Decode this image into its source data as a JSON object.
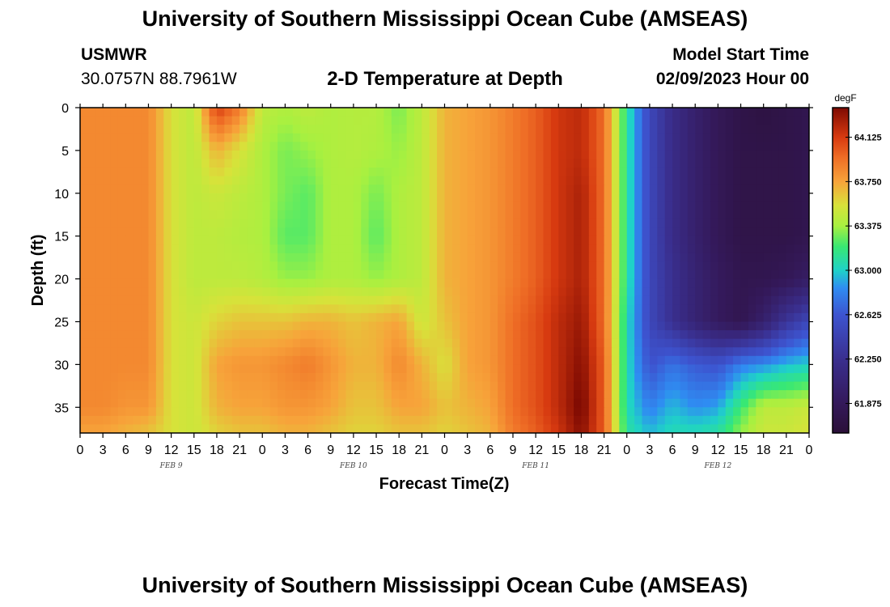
{
  "header": {
    "title": "University of Southern Mississippi Ocean Cube (AMSEAS)",
    "station_name": "USMWR",
    "station_coords": "30.0757N  88.7961W",
    "chart_title": "2-D Temperature at Depth",
    "model_label": "Model Start Time",
    "model_time": "02/09/2023 Hour 00"
  },
  "footer": {
    "title": "University of Southern Mississippi Ocean Cube (AMSEAS)"
  },
  "chart_data": {
    "type": "heatmap",
    "title": "2-D Temperature at Depth",
    "xlabel": "Forecast Time(Z)",
    "ylabel": "Depth (ft)",
    "x_unit": "forecast hour",
    "xlim": [
      0,
      96
    ],
    "ylim": [
      0,
      38
    ],
    "y_inverted": true,
    "x_ticks": [
      0,
      3,
      6,
      9,
      12,
      15,
      18,
      21,
      24,
      27,
      30,
      33,
      36,
      39,
      42,
      45,
      48,
      51,
      54,
      57,
      60,
      63,
      66,
      69,
      72,
      75,
      78,
      81,
      84,
      87,
      90,
      93,
      96
    ],
    "x_tick_labels": [
      "0",
      "3",
      "6",
      "9",
      "12",
      "15",
      "18",
      "21",
      "0",
      "3",
      "6",
      "9",
      "12",
      "15",
      "18",
      "21",
      "0",
      "3",
      "6",
      "9",
      "12",
      "15",
      "18",
      "21",
      "0",
      "3",
      "6",
      "9",
      "12",
      "15",
      "18",
      "21",
      "0"
    ],
    "day_labels": [
      {
        "hour": 12,
        "text": "FEB 9"
      },
      {
        "hour": 36,
        "text": "FEB 10"
      },
      {
        "hour": 60,
        "text": "FEB 11"
      },
      {
        "hour": 84,
        "text": "FEB 12"
      }
    ],
    "y_ticks": [
      0,
      5,
      10,
      15,
      20,
      25,
      30,
      35
    ],
    "y_tick_labels": [
      "0",
      "5",
      "10",
      "15",
      "20",
      "25",
      "30",
      "35"
    ],
    "colorbar": {
      "unit": "degF",
      "min": 61.625,
      "max": 64.375,
      "tick_values": [
        61.875,
        62.25,
        62.625,
        63.0,
        63.375,
        63.75,
        64.125
      ],
      "tick_labels": [
        "61.875",
        "62.250",
        "62.625",
        "63.000",
        "63.375",
        "63.750",
        "64.125"
      ],
      "colors": [
        {
          "v": 61.625,
          "c": "#2b1038"
        },
        {
          "v": 61.875,
          "c": "#34195a"
        },
        {
          "v": 62.25,
          "c": "#3a2f8f"
        },
        {
          "v": 62.625,
          "c": "#3d54d0"
        },
        {
          "v": 62.85,
          "c": "#2f8cf2"
        },
        {
          "v": 63.0,
          "c": "#1fd2c8"
        },
        {
          "v": 63.2,
          "c": "#38e873"
        },
        {
          "v": 63.375,
          "c": "#a8f040"
        },
        {
          "v": 63.55,
          "c": "#d8e23a"
        },
        {
          "v": 63.75,
          "c": "#f7a33a"
        },
        {
          "v": 63.95,
          "c": "#ef6e26"
        },
        {
          "v": 64.125,
          "c": "#d73a10"
        },
        {
          "v": 64.375,
          "c": "#7e0a02"
        }
      ]
    },
    "temperature_field": {
      "depths_ft": [
        0,
        5,
        10,
        15,
        20,
        25,
        30,
        35,
        38
      ],
      "hours": [
        0,
        3,
        6,
        9,
        12,
        15,
        18,
        21,
        24,
        27,
        30,
        33,
        36,
        39,
        42,
        45,
        48,
        51,
        54,
        57,
        60,
        63,
        66,
        69,
        72,
        75,
        78,
        81,
        84,
        87,
        90,
        93,
        96
      ],
      "values": [
        [
          63.85,
          63.85,
          63.85,
          63.85,
          63.55,
          63.45,
          64.12,
          63.9,
          63.45,
          63.4,
          63.45,
          63.4,
          63.42,
          63.42,
          63.3,
          63.45,
          63.7,
          63.75,
          63.8,
          63.9,
          64.0,
          64.15,
          64.2,
          63.95,
          63.1,
          62.5,
          62.2,
          62.0,
          61.85,
          61.75,
          61.7,
          61.75,
          61.8
        ],
        [
          63.85,
          63.85,
          63.85,
          63.85,
          63.55,
          63.45,
          63.7,
          63.55,
          63.4,
          63.3,
          63.35,
          63.4,
          63.42,
          63.4,
          63.35,
          63.45,
          63.7,
          63.75,
          63.8,
          63.9,
          64.0,
          64.15,
          64.2,
          63.95,
          63.1,
          62.5,
          62.2,
          62.0,
          61.85,
          61.75,
          61.75,
          61.75,
          61.8
        ],
        [
          63.85,
          63.85,
          63.85,
          63.85,
          63.55,
          63.45,
          63.5,
          63.45,
          63.4,
          63.3,
          63.25,
          63.4,
          63.4,
          63.3,
          63.4,
          63.45,
          63.7,
          63.75,
          63.8,
          63.9,
          64.0,
          64.15,
          64.25,
          63.95,
          63.1,
          62.5,
          62.2,
          62.0,
          61.85,
          61.75,
          61.75,
          61.75,
          61.8
        ],
        [
          63.85,
          63.85,
          63.85,
          63.85,
          63.55,
          63.45,
          63.45,
          63.42,
          63.4,
          63.25,
          63.25,
          63.4,
          63.4,
          63.25,
          63.4,
          63.45,
          63.7,
          63.75,
          63.8,
          63.9,
          64.0,
          64.15,
          64.25,
          63.95,
          63.1,
          62.5,
          62.2,
          62.0,
          61.85,
          61.75,
          61.75,
          61.75,
          61.8
        ],
        [
          63.85,
          63.85,
          63.85,
          63.85,
          63.55,
          63.45,
          63.45,
          63.45,
          63.42,
          63.35,
          63.35,
          63.4,
          63.4,
          63.35,
          63.4,
          63.45,
          63.7,
          63.75,
          63.8,
          63.9,
          64.0,
          64.15,
          64.25,
          63.95,
          63.1,
          62.5,
          62.25,
          62.05,
          61.9,
          61.8,
          61.8,
          61.85,
          61.95
        ],
        [
          63.85,
          63.85,
          63.85,
          63.85,
          63.55,
          63.5,
          63.6,
          63.65,
          63.65,
          63.65,
          63.7,
          63.7,
          63.65,
          63.7,
          63.75,
          63.5,
          63.65,
          63.75,
          63.8,
          63.95,
          64.05,
          64.2,
          64.3,
          63.95,
          63.05,
          62.5,
          62.25,
          62.05,
          61.9,
          61.8,
          62.0,
          62.3,
          62.5
        ],
        [
          63.85,
          63.85,
          63.85,
          63.85,
          63.55,
          63.5,
          63.75,
          63.8,
          63.8,
          63.85,
          63.9,
          63.8,
          63.7,
          63.7,
          63.85,
          63.7,
          63.55,
          63.75,
          63.8,
          63.95,
          64.05,
          64.2,
          64.35,
          64.0,
          63.05,
          62.6,
          62.75,
          62.65,
          62.6,
          62.8,
          62.85,
          62.95,
          63.0
        ],
        [
          63.85,
          63.85,
          63.8,
          63.8,
          63.55,
          63.5,
          63.7,
          63.75,
          63.75,
          63.8,
          63.8,
          63.75,
          63.65,
          63.65,
          63.75,
          63.75,
          63.65,
          63.7,
          63.75,
          63.95,
          64.05,
          64.2,
          64.4,
          64.0,
          63.05,
          62.8,
          62.95,
          62.85,
          62.9,
          63.2,
          63.45,
          63.45,
          63.5
        ],
        [
          63.75,
          63.75,
          63.7,
          63.65,
          63.55,
          63.5,
          63.6,
          63.65,
          63.65,
          63.7,
          63.7,
          63.65,
          63.6,
          63.6,
          63.65,
          63.65,
          63.6,
          63.65,
          63.7,
          63.9,
          64.0,
          64.15,
          64.35,
          64.0,
          63.1,
          62.95,
          63.05,
          63.05,
          63.1,
          63.35,
          63.5,
          63.5,
          63.55
        ]
      ]
    }
  }
}
